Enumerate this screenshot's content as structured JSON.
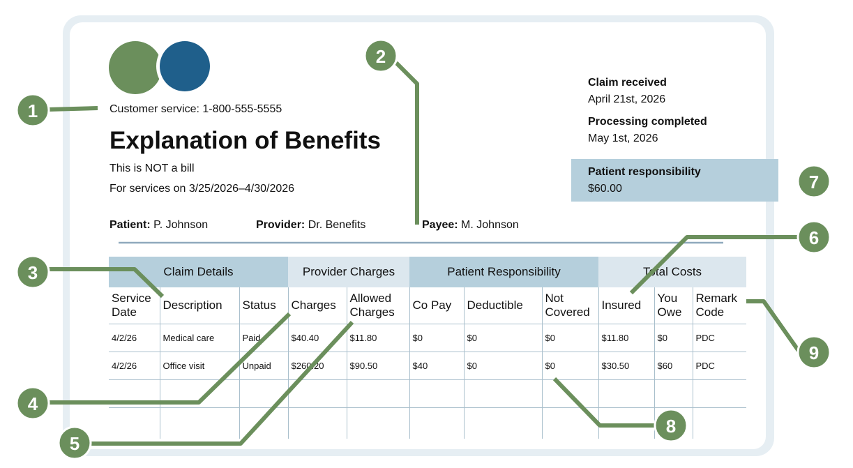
{
  "header": {
    "customer_service": "Customer service: 1-800-555-5555",
    "title": "Explanation of Benefits",
    "note": "This is NOT a bill",
    "service_dates": "For services on 3/25/2026–4/30/2026"
  },
  "parties": [
    {
      "label": "Patient:",
      "value": "P. Johnson"
    },
    {
      "label": "Provider:",
      "value": "Dr. Benefits"
    },
    {
      "label": "Payee:",
      "value": "M. Johnson"
    }
  ],
  "claim": {
    "received_label": "Claim received",
    "received": "April 21st, 2026",
    "completed_label": "Processing completed",
    "completed": "May 1st, 2026",
    "responsibility_label": "Patient responsibility",
    "responsibility": "$60.00"
  },
  "table": {
    "groups": [
      {
        "label": "Claim Details",
        "span": 3
      },
      {
        "label": "Provider Charges",
        "span": 2
      },
      {
        "label": "Patient Responsibility",
        "span": 3
      },
      {
        "label": "Total Costs",
        "span": 3
      }
    ],
    "columns": [
      "Service Date",
      "Description",
      "Status",
      "Charges",
      "Allowed Charges",
      "Co Pay",
      "Deductible",
      "Not Covered",
      "Insured",
      "You Owe",
      "Remark Code"
    ],
    "rows": [
      [
        "4/2/26",
        "Medical care",
        "Paid",
        "$40.40",
        "$11.80",
        "$0",
        "$0",
        "$0",
        "$11.80",
        "$0",
        "PDC"
      ],
      [
        "4/2/26",
        "Office visit",
        "Unpaid",
        "$260.20",
        "$90.50",
        "$40",
        "$0",
        "$0",
        "$30.50",
        "$60",
        "PDC"
      ]
    ]
  },
  "callouts": [
    "1",
    "2",
    "3",
    "4",
    "5",
    "6",
    "7",
    "8",
    "9"
  ]
}
